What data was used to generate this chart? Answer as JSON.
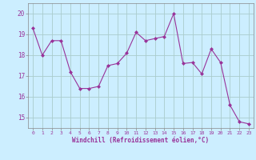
{
  "x": [
    0,
    1,
    2,
    3,
    4,
    5,
    6,
    7,
    8,
    9,
    10,
    11,
    12,
    13,
    14,
    15,
    16,
    17,
    18,
    19,
    20,
    21,
    22,
    23
  ],
  "y": [
    19.3,
    18.0,
    18.7,
    18.7,
    17.2,
    16.4,
    16.4,
    16.5,
    17.5,
    17.6,
    18.1,
    19.1,
    18.7,
    18.8,
    18.9,
    20.0,
    17.6,
    17.65,
    17.1,
    18.3,
    17.65,
    15.6,
    14.8,
    14.7
  ],
  "line_color": "#993399",
  "marker": "D",
  "marker_size": 2,
  "bg_color": "#cceeff",
  "grid_color": "#aacccc",
  "xlabel": "Windchill (Refroidissement éolien,°C)",
  "xlabel_color": "#993399",
  "tick_color": "#993399",
  "spine_color": "#888888",
  "ylim": [
    14.5,
    20.5
  ],
  "xlim": [
    -0.5,
    23.5
  ],
  "yticks": [
    15,
    16,
    17,
    18,
    19,
    20
  ],
  "xticks": [
    0,
    1,
    2,
    3,
    4,
    5,
    6,
    7,
    8,
    9,
    10,
    11,
    12,
    13,
    14,
    15,
    16,
    17,
    18,
    19,
    20,
    21,
    22,
    23
  ]
}
